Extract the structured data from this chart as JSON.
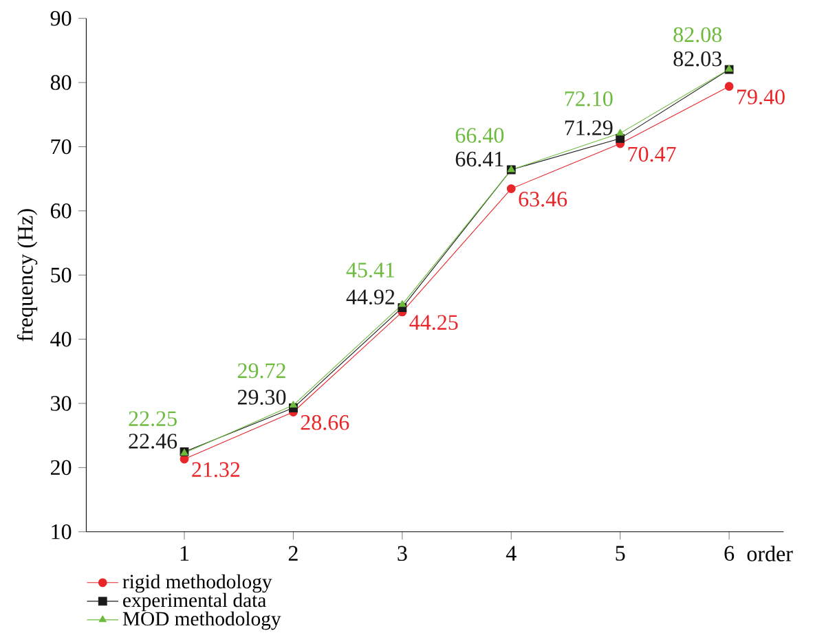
{
  "chart_data": {
    "type": "line",
    "ylabel": "frequency (Hz)",
    "xlabel": "order",
    "categories": [
      "1",
      "2",
      "3",
      "4",
      "5",
      "6"
    ],
    "ylim": [
      10,
      90
    ],
    "yticks": [
      10,
      20,
      30,
      40,
      50,
      60,
      70,
      80,
      90
    ],
    "grid": false,
    "legend": "bottom",
    "line_style": "solid",
    "series": [
      {
        "name": "rigid methodology",
        "color": "#e8262a",
        "marker": "circle",
        "values": [
          21.32,
          28.66,
          44.25,
          63.46,
          70.47,
          79.4
        ],
        "value_labels": [
          "21.32",
          "28.66",
          "44.25",
          "63.46",
          "70.47",
          "79.40"
        ]
      },
      {
        "name": "experimental data",
        "color": "#1a1a1a",
        "marker": "square",
        "values": [
          22.46,
          29.3,
          44.92,
          66.41,
          71.29,
          82.03
        ],
        "value_labels": [
          "22.46",
          "29.30",
          "44.92",
          "66.41",
          "71.29",
          "82.03"
        ]
      },
      {
        "name": "MOD methodology",
        "color": "#6cbb3c",
        "marker": "triangle",
        "values": [
          22.25,
          29.72,
          45.41,
          66.4,
          72.1,
          82.08
        ],
        "value_labels": [
          "22.25",
          "29.72",
          "45.41",
          "66.40",
          "72.10",
          "82.08"
        ]
      }
    ]
  }
}
